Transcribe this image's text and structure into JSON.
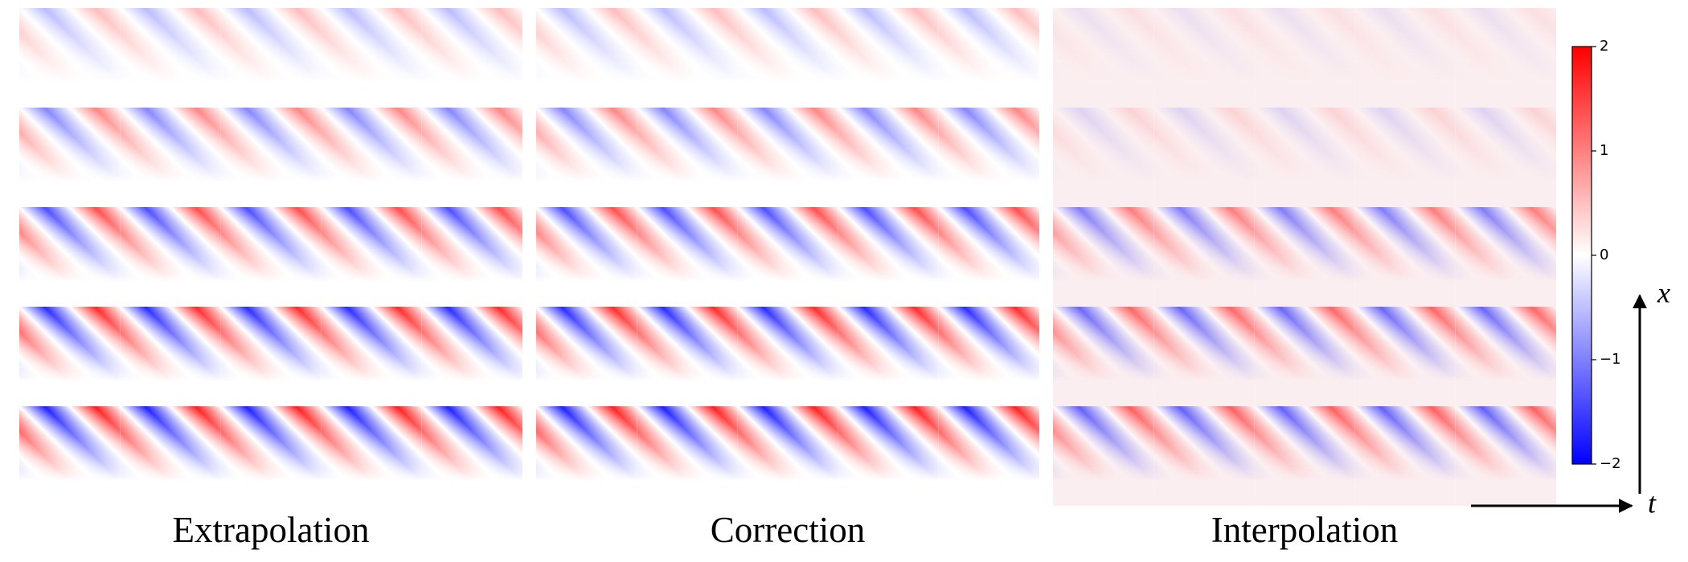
{
  "panel_labels": [
    "Extrapolation",
    "Correction",
    "Interpolation"
  ],
  "colorbar": {
    "lim": [
      -2,
      2
    ],
    "ticks": [
      {
        "value": -2,
        "label": "−2"
      },
      {
        "value": -1,
        "label": "−1"
      },
      0,
      1,
      2
    ]
  },
  "axis_labels": {
    "vertical": "x",
    "horizontal": "t"
  }
}
